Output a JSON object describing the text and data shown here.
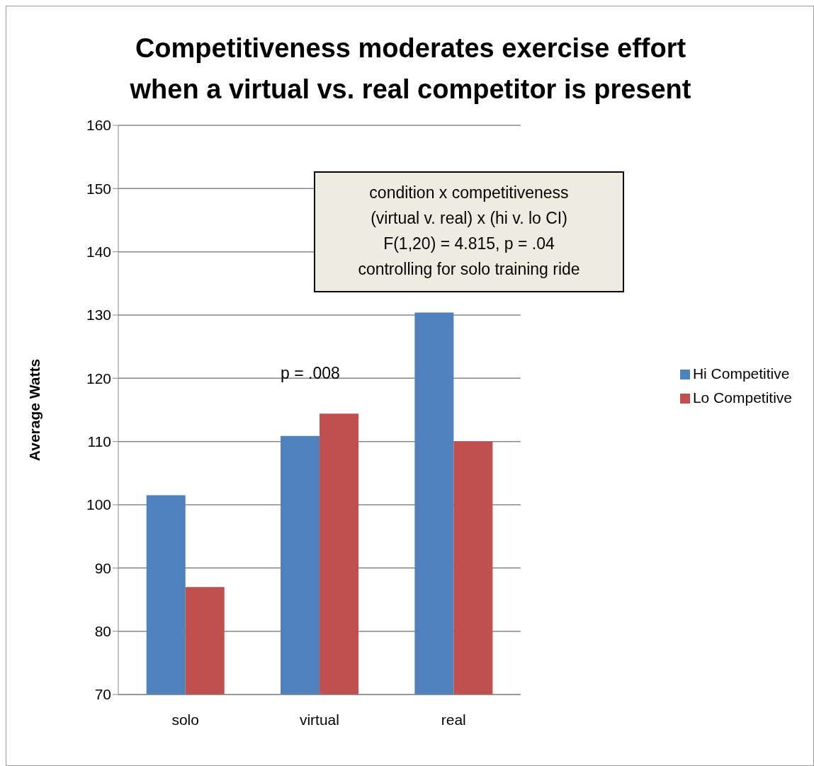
{
  "chart_data": {
    "type": "bar",
    "title": "Competitiveness moderates exercise effort\nwhen a virtual vs. real competitor is present",
    "ylabel": "Average Watts",
    "categories": [
      "solo",
      "virtual",
      "real"
    ],
    "series": [
      {
        "name": "Hi Competitive",
        "color": "#4f81bd",
        "values": [
          101.5,
          110.9,
          130.4
        ]
      },
      {
        "name": "Lo Competitive",
        "color": "#c0504d",
        "values": [
          87,
          114.4,
          110
        ]
      }
    ],
    "ylim": [
      70,
      160
    ],
    "yticks": [
      70,
      80,
      90,
      100,
      110,
      120,
      130,
      140,
      150,
      160
    ],
    "grid": "y",
    "legend": "right",
    "annotations": [
      "condition x competitiveness\n(virtual v. real) x (hi v. lo CI)\nF(1,20) = 4.815,  p = .04\ncontrolling for solo training ride",
      "p = .008"
    ]
  }
}
